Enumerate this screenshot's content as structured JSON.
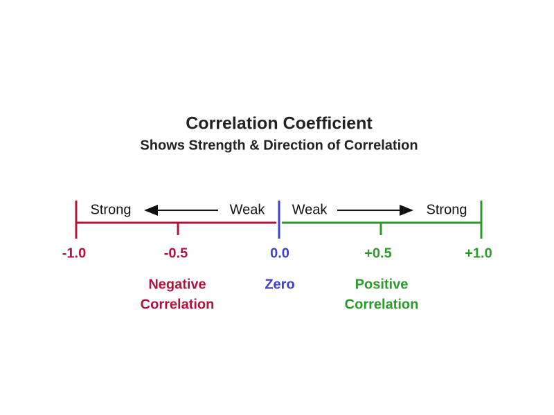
{
  "header": {
    "title": "Correlation Coefficient",
    "subtitle": "Shows Strength & Direction of Correlation"
  },
  "direction": {
    "negative": {
      "far": "Strong",
      "near": "Weak"
    },
    "positive": {
      "near": "Weak",
      "far": "Strong"
    }
  },
  "scale": {
    "ticks": [
      "-1.0",
      "-0.5",
      "0.0",
      "+0.5",
      "+1.0"
    ]
  },
  "regions": {
    "negative": [
      "Negative",
      "Correlation"
    ],
    "zero": "Zero",
    "positive": [
      "Positive",
      "Correlation"
    ]
  }
}
